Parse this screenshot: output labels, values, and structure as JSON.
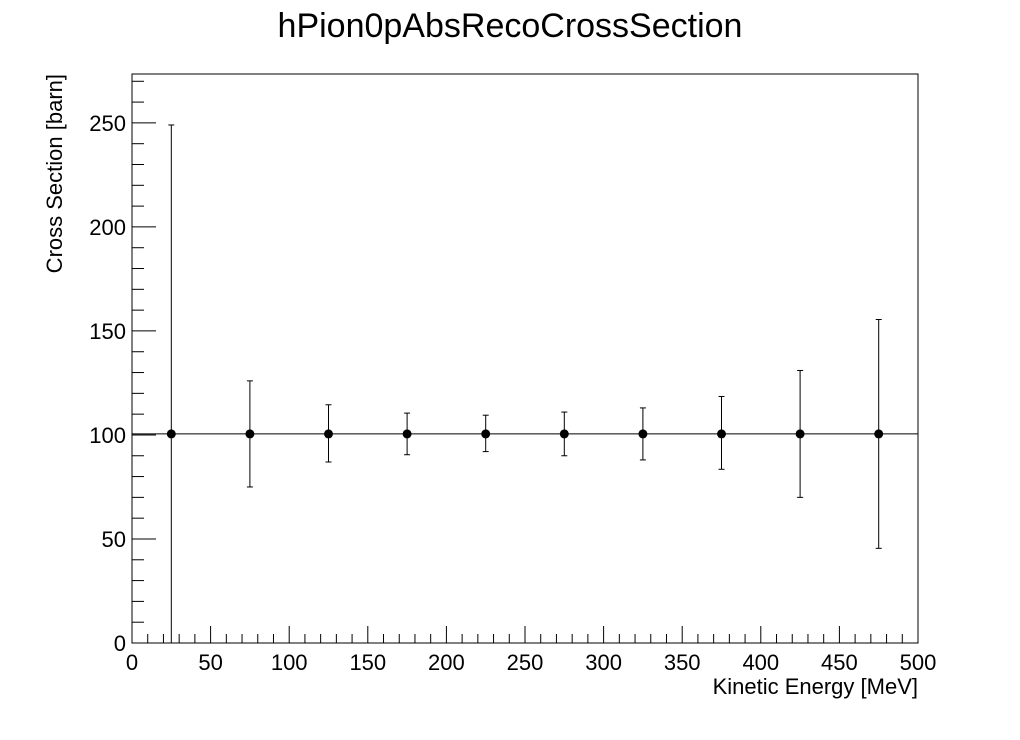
{
  "chart_data": {
    "type": "scatter",
    "title": "hPion0pAbsRecoCrossSection",
    "xlabel": "Kinetic Energy [MeV]",
    "ylabel": "Cross Section [barn]",
    "xlim": [
      0,
      500
    ],
    "ylim": [
      0,
      273.5
    ],
    "x_ticks": [
      0,
      50,
      100,
      150,
      200,
      250,
      300,
      350,
      400,
      450,
      500
    ],
    "y_ticks": [
      0,
      50,
      100,
      150,
      200,
      250
    ],
    "x_tick_labels": [
      "0",
      "50",
      "100",
      "150",
      "200",
      "250",
      "300",
      "350",
      "400",
      "450",
      "500"
    ],
    "y_tick_labels": [
      "0",
      "50",
      "100",
      "150",
      "200",
      "250"
    ],
    "reference_line_y": 100.5,
    "grid": false,
    "legend": "none",
    "series": [
      {
        "x": [
          25,
          75,
          125,
          175,
          225,
          275,
          325,
          375,
          425,
          475
        ],
        "y": [
          100.5,
          100.5,
          100.5,
          100.5,
          100.5,
          100.5,
          100.5,
          100.5,
          100.5,
          100.5
        ],
        "y_err_low": [
          100.5,
          25.5,
          13.5,
          10,
          8.5,
          10.5,
          12.5,
          17,
          30.5,
          55
        ],
        "y_err_high": [
          148.5,
          25.5,
          14,
          10,
          9,
          10.5,
          12.5,
          18,
          30.5,
          55
        ],
        "x_err": [
          25,
          25,
          25,
          25,
          25,
          25,
          25,
          25,
          25,
          25
        ],
        "color": "#000000"
      }
    ]
  }
}
